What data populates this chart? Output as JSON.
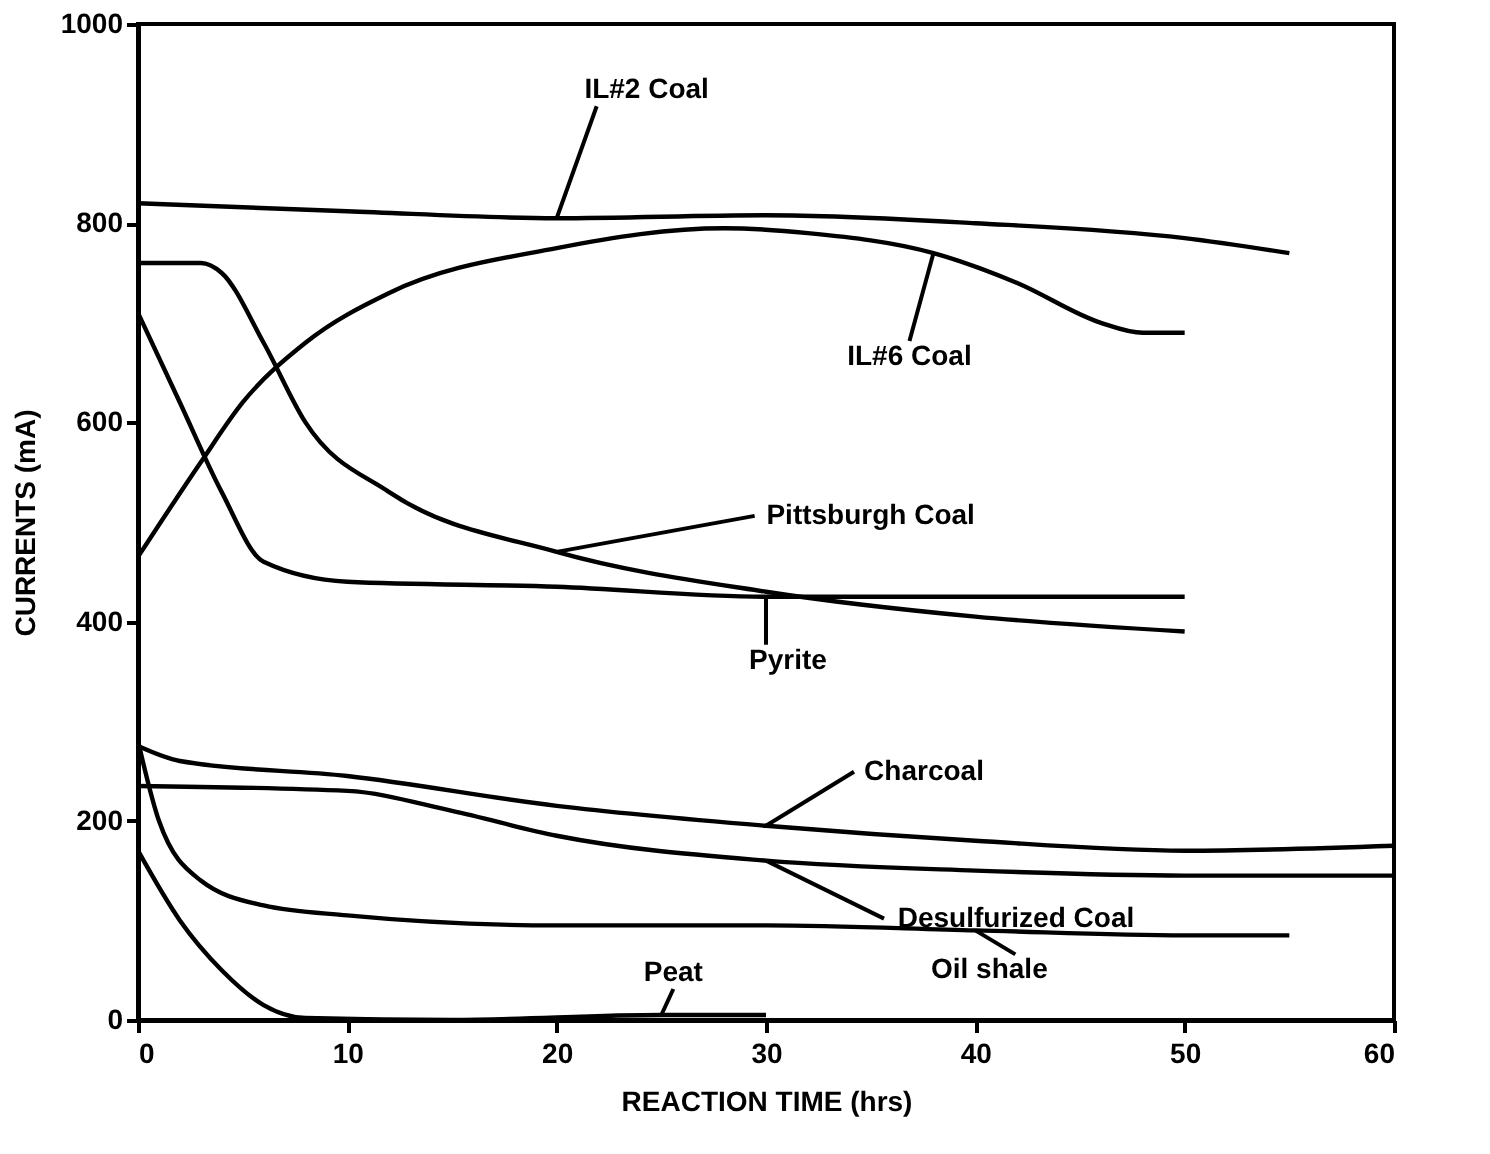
{
  "chart_data": {
    "type": "line",
    "xlabel": "REACTION TIME (hrs)",
    "ylabel": "CURRENTS (mA)",
    "xlim": [
      0,
      60
    ],
    "ylim": [
      0,
      1000
    ],
    "xticks": [
      0,
      10,
      20,
      30,
      40,
      50,
      60
    ],
    "yticks": [
      0,
      200,
      400,
      600,
      800,
      {
        "value": 1000,
        "label": "1000"
      }
    ],
    "grid": false,
    "legend": false,
    "marker": "none",
    "line_style": "solid",
    "series": [
      {
        "color": "#000000",
        "x": [
          0,
          10,
          20,
          30,
          40,
          50,
          55
        ],
        "values": [
          820,
          812,
          805,
          808,
          800,
          785,
          770
        ]
      },
      {
        "color": "#000000",
        "x": [
          0,
          3,
          5,
          8,
          12,
          20,
          28,
          32,
          38,
          42,
          46,
          48,
          50
        ],
        "values": [
          465,
          560,
          620,
          680,
          730,
          775,
          795,
          790,
          770,
          740,
          700,
          690,
          690
        ]
      },
      {
        "color": "#000000",
        "x": [
          0,
          3,
          4,
          6,
          8,
          12,
          20,
          30,
          40,
          50
        ],
        "values": [
          760,
          760,
          750,
          680,
          600,
          530,
          470,
          430,
          405,
          390
        ]
      },
      {
        "color": "#000000",
        "x": [
          0,
          2,
          4,
          6,
          10,
          20,
          30,
          40,
          50
        ],
        "values": [
          710,
          620,
          530,
          460,
          440,
          435,
          425,
          425,
          425
        ]
      },
      {
        "color": "#000000",
        "x": [
          0,
          2,
          10,
          20,
          30,
          40,
          50,
          60
        ],
        "values": [
          275,
          260,
          245,
          215,
          195,
          180,
          170,
          175
        ]
      },
      {
        "color": "#000000",
        "x": [
          0,
          10,
          15,
          20,
          30,
          40,
          50,
          60
        ],
        "values": [
          235,
          230,
          210,
          185,
          160,
          150,
          145,
          145
        ]
      },
      {
        "color": "#000000",
        "x": [
          0,
          1,
          3,
          6,
          10,
          20,
          30,
          40,
          50,
          55
        ],
        "values": [
          280,
          200,
          140,
          115,
          105,
          95,
          95,
          90,
          85,
          85
        ]
      },
      {
        "color": "#000000",
        "x": [
          0,
          2,
          4,
          6,
          8,
          15,
          25,
          30
        ],
        "values": [
          170,
          100,
          50,
          15,
          2,
          0,
          5,
          5
        ]
      }
    ],
    "annotations": [
      {
        "text": "IL#2 Coal",
        "x": 20,
        "y": 805
      },
      {
        "text": "IL#6 Coal",
        "x": 38,
        "y": 770
      },
      {
        "text": "Pittsburgh Coal",
        "x": 20,
        "y": 470
      },
      {
        "text": "Pyrite",
        "x": 30,
        "y": 425
      },
      {
        "text": "Charcoal",
        "x": 30,
        "y": 195
      },
      {
        "text": "Desulfurized Coal",
        "x": 30,
        "y": 160
      },
      {
        "text": "Oil shale",
        "x": 40,
        "y": 90
      },
      {
        "text": "Peat",
        "x": 25,
        "y": 5
      }
    ]
  }
}
